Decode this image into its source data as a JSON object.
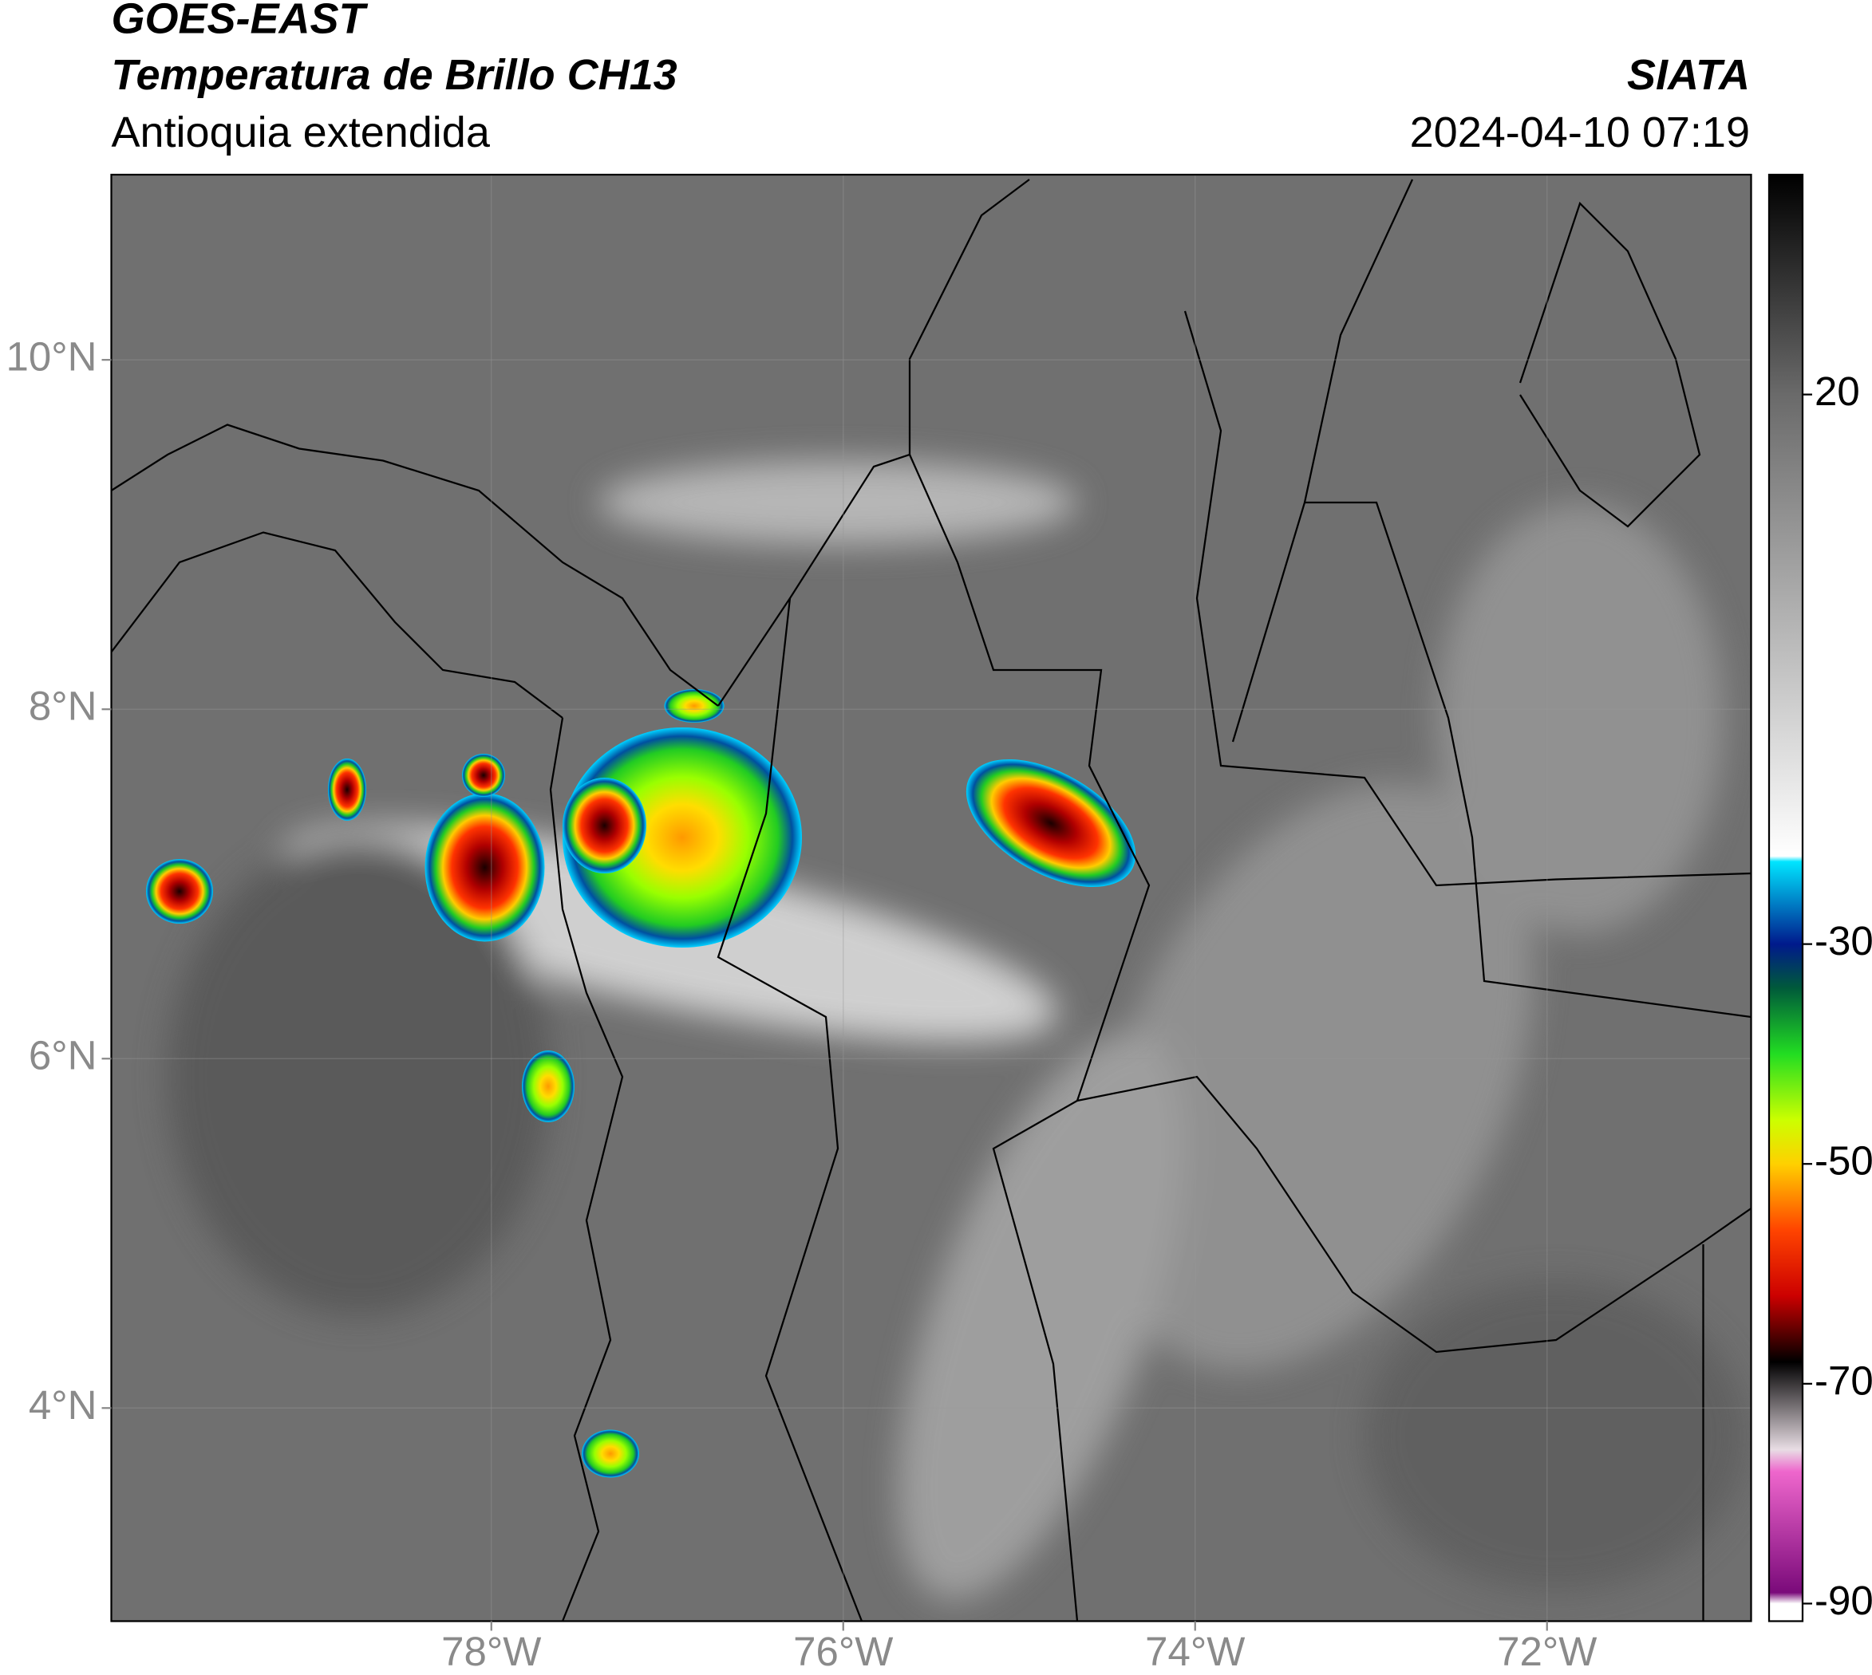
{
  "chart_data": {
    "type": "map",
    "title": "GOES-EAST",
    "subtitle": "Temperatura de Brillo CH13",
    "region": "Antioquia extendida",
    "source": "SIATA",
    "datetime": "2024-04-10 07:19",
    "xlim": [
      -80.16,
      -70.84
    ],
    "ylim": [
      2.78,
      11.06
    ],
    "xticks": [
      {
        "value": -78,
        "label": "78°W"
      },
      {
        "value": -76,
        "label": "76°W"
      },
      {
        "value": -74,
        "label": "74°W"
      },
      {
        "value": -72,
        "label": "72°W"
      }
    ],
    "yticks": [
      {
        "value": 10,
        "label": "10°N"
      },
      {
        "value": 8,
        "label": "8°N"
      },
      {
        "value": 6,
        "label": "6°N"
      },
      {
        "value": 4,
        "label": "4°N"
      }
    ],
    "grid": true,
    "colorbar": {
      "lim": [
        -91.6,
        40
      ],
      "ticks": [
        20,
        -30,
        -50,
        -70,
        -90
      ],
      "stops": [
        {
          "value": 40,
          "color": "#000000"
        },
        {
          "value": 20,
          "color": "#6a6a6a"
        },
        {
          "value": -22,
          "color": "#ffffff"
        },
        {
          "value": -22.5,
          "color": "#00e5ff"
        },
        {
          "value": -30,
          "color": "#001a8c"
        },
        {
          "value": -34,
          "color": "#005a3a"
        },
        {
          "value": -40,
          "color": "#22dd22"
        },
        {
          "value": -46,
          "color": "#ccff00"
        },
        {
          "value": -50,
          "color": "#ffd000"
        },
        {
          "value": -56,
          "color": "#ff4400"
        },
        {
          "value": -62,
          "color": "#cc0000"
        },
        {
          "value": -68,
          "color": "#000000"
        },
        {
          "value": -76,
          "color": "#e8dde4"
        },
        {
          "value": -78,
          "color": "#ee66cc"
        },
        {
          "value": -89,
          "color": "#7a0a7a"
        },
        {
          "value": -90,
          "color": "#ffffff"
        }
      ]
    }
  }
}
